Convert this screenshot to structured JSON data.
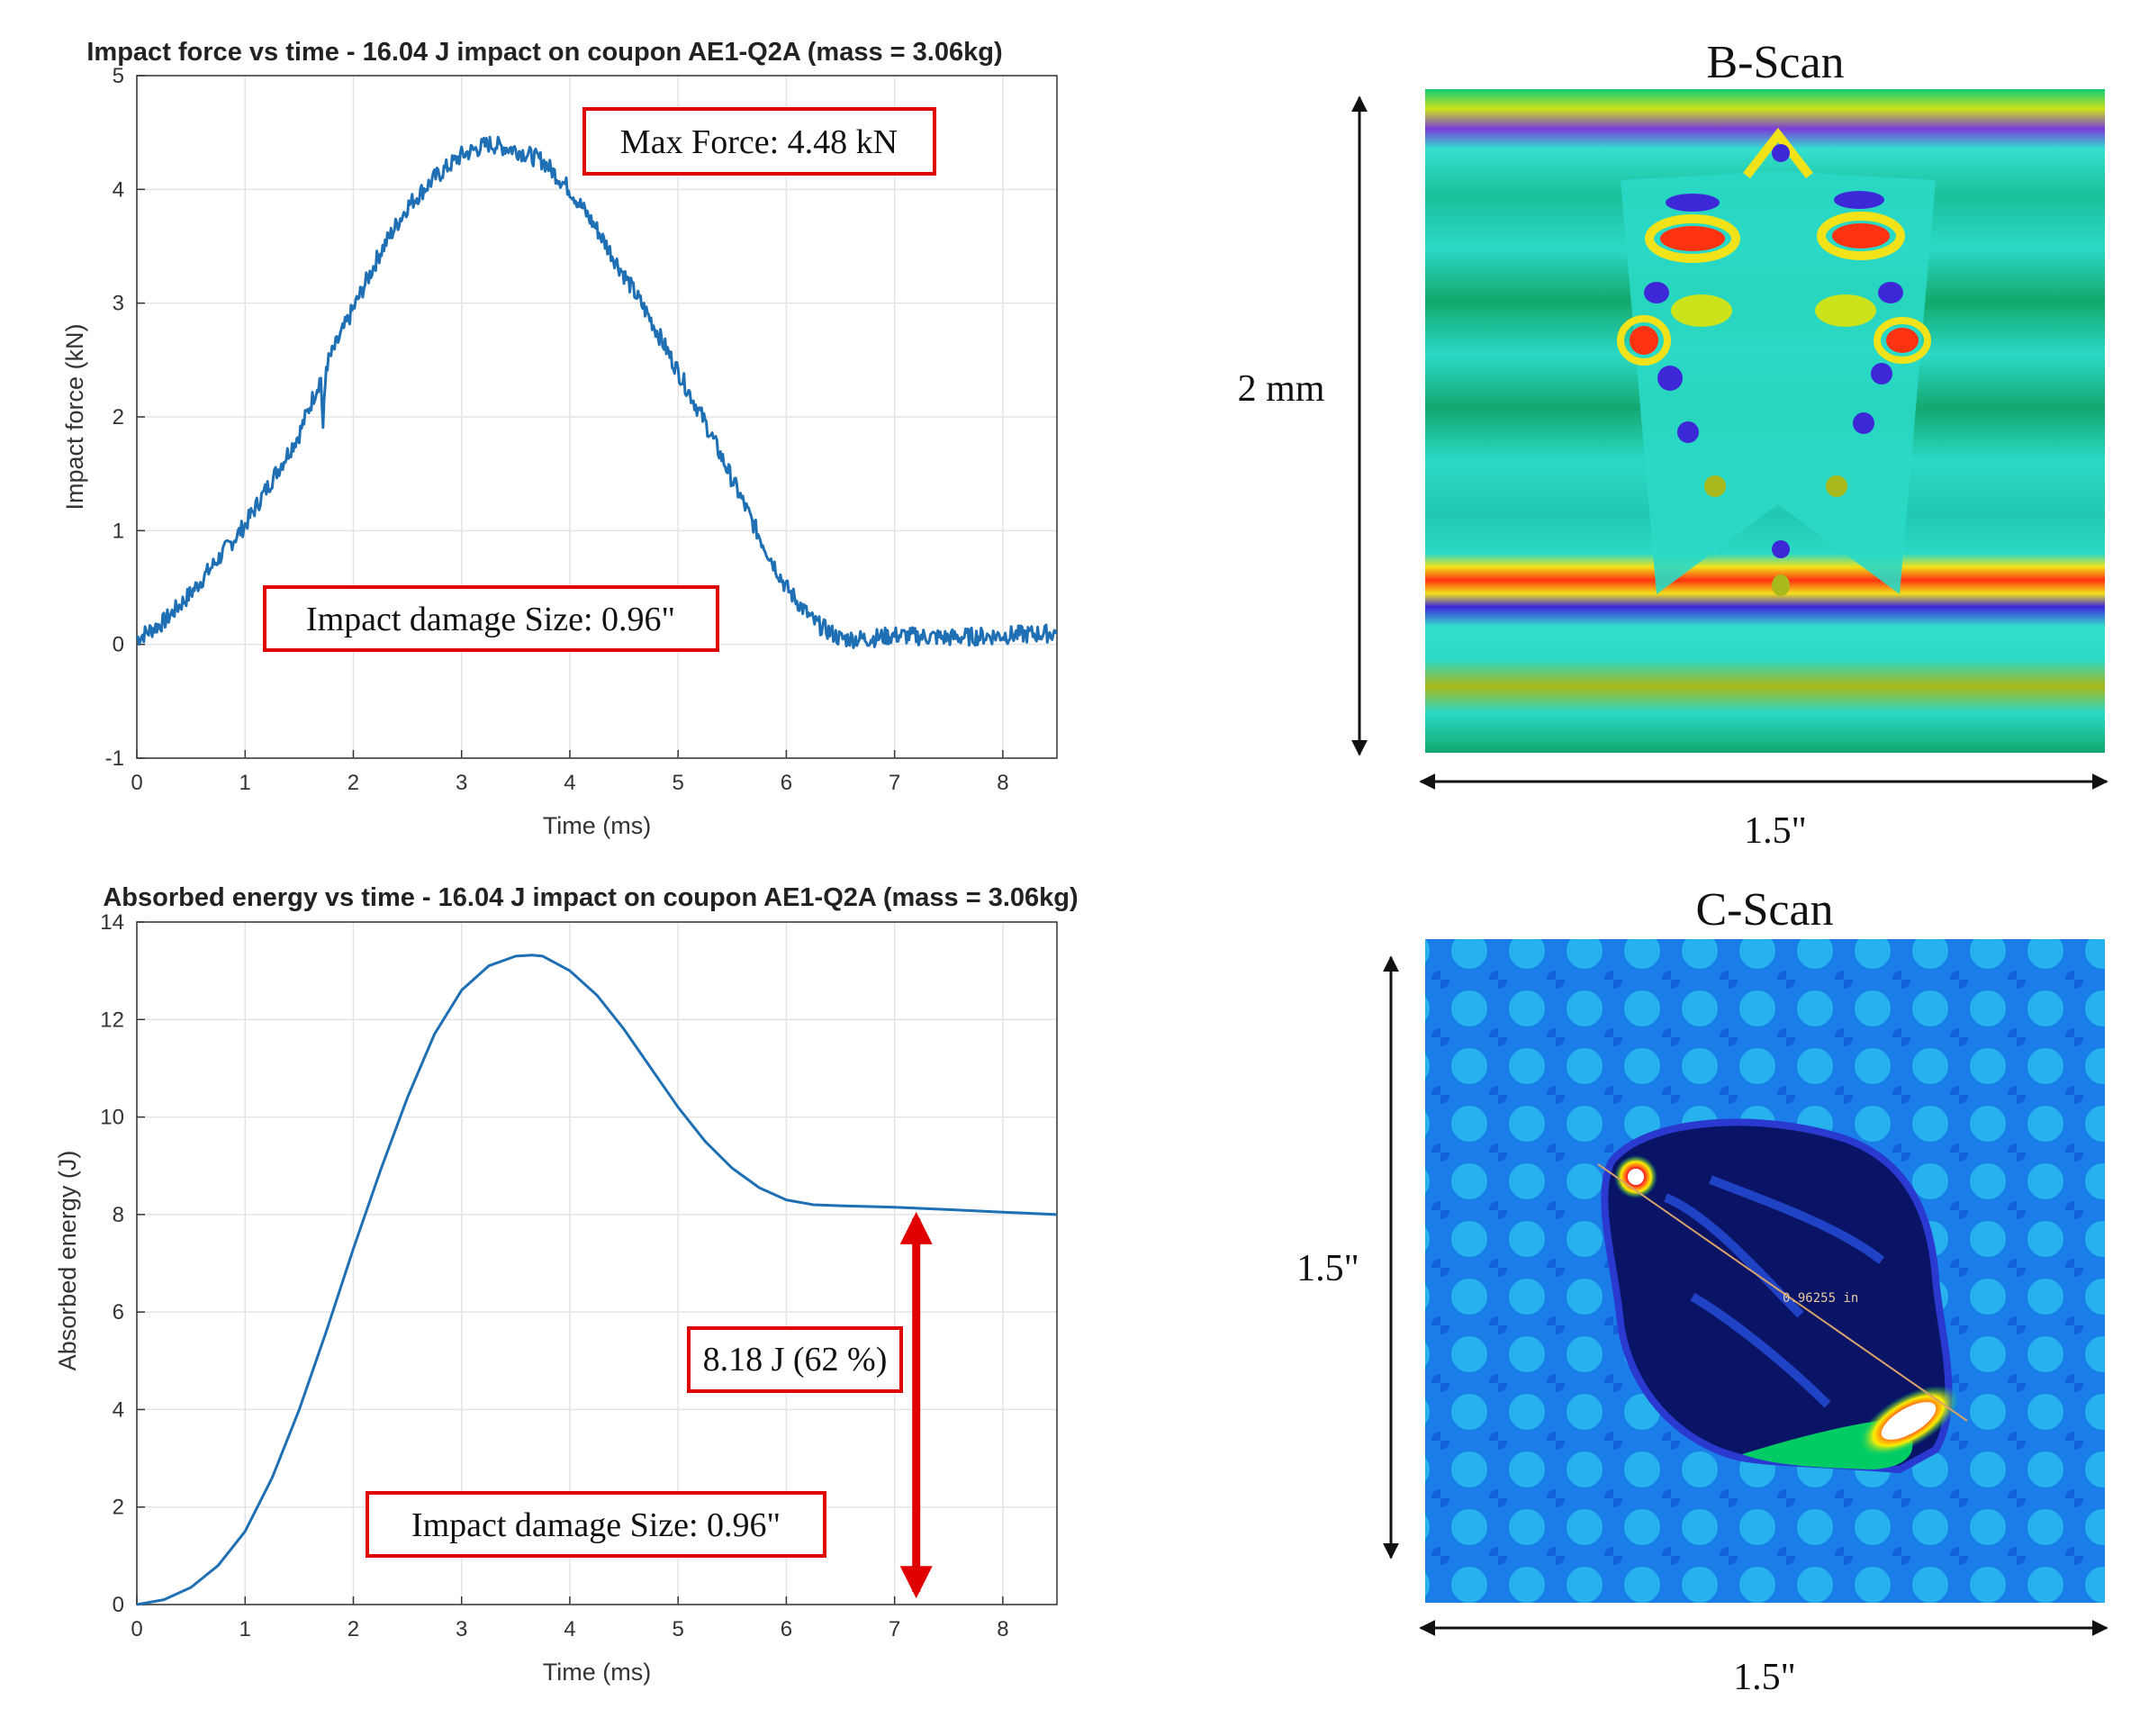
{
  "colors": {
    "series": "#1f6fb4",
    "annotation_box": "#e00000",
    "arrow": "#e00000",
    "grid": "#e4e4e4"
  },
  "chart_data": [
    {
      "type": "line",
      "title": "Impact force vs time - 16.04 J impact on coupon AE1-Q2A (mass = 3.06kg)",
      "xlabel": "Time (ms)",
      "ylabel": "Impact force (kN)",
      "xlim": [
        0,
        8.5
      ],
      "ylim": [
        -1,
        5
      ],
      "x_ticks": [
        "0",
        "1",
        "2",
        "3",
        "4",
        "5",
        "6",
        "7",
        "8"
      ],
      "y_ticks": [
        "-1",
        "0",
        "1",
        "2",
        "3",
        "4",
        "5"
      ],
      "grid": true,
      "series": [
        {
          "name": "Impact force",
          "x": [
            0,
            0.25,
            0.5,
            0.75,
            1.0,
            1.25,
            1.5,
            1.7,
            1.72,
            1.75,
            2.0,
            2.25,
            2.5,
            2.75,
            3.0,
            3.25,
            3.5,
            3.75,
            4.0,
            4.25,
            4.5,
            4.75,
            5.0,
            5.25,
            5.5,
            5.75,
            6.0,
            6.25,
            6.5,
            6.75,
            7.0,
            7.5,
            8.0,
            8.5
          ],
          "values": [
            0.05,
            0.2,
            0.45,
            0.75,
            1.05,
            1.45,
            1.85,
            2.35,
            1.9,
            2.45,
            2.95,
            3.45,
            3.85,
            4.1,
            4.3,
            4.4,
            4.35,
            4.25,
            4.0,
            3.65,
            3.25,
            2.85,
            2.4,
            1.95,
            1.45,
            0.95,
            0.5,
            0.2,
            0.05,
            0.05,
            0.08,
            0.06,
            0.08,
            0.1
          ]
        }
      ],
      "annotations": [
        {
          "text": "Max Force: 4.48 kN",
          "x": 5.5,
          "y": 4.48
        },
        {
          "text": "Impact damage Size: 0.96\"",
          "x": 3.3,
          "y": 0.2
        }
      ]
    },
    {
      "type": "line",
      "title": "Absorbed energy vs time - 16.04 J impact on coupon AE1-Q2A (mass = 3.06kg)",
      "xlabel": "Time (ms)",
      "ylabel": "Absorbed energy (J)",
      "xlim": [
        0,
        8.5
      ],
      "ylim": [
        0,
        14
      ],
      "x_ticks": [
        "0",
        "1",
        "2",
        "3",
        "4",
        "5",
        "6",
        "7",
        "8"
      ],
      "y_ticks": [
        "0",
        "2",
        "4",
        "6",
        "8",
        "10",
        "12",
        "14"
      ],
      "grid": true,
      "series": [
        {
          "name": "Absorbed energy",
          "x": [
            0,
            0.25,
            0.5,
            0.75,
            1.0,
            1.25,
            1.5,
            1.75,
            2.0,
            2.25,
            2.5,
            2.75,
            3.0,
            3.25,
            3.5,
            3.65,
            3.75,
            4.0,
            4.25,
            4.5,
            4.75,
            5.0,
            5.25,
            5.5,
            5.75,
            6.0,
            6.25,
            6.5,
            7.0,
            7.5,
            8.0,
            8.5
          ],
          "values": [
            0,
            0.1,
            0.35,
            0.8,
            1.5,
            2.6,
            4.0,
            5.6,
            7.3,
            8.9,
            10.4,
            11.7,
            12.6,
            13.1,
            13.3,
            13.32,
            13.3,
            13.0,
            12.5,
            11.8,
            11.0,
            10.2,
            9.5,
            8.95,
            8.55,
            8.3,
            8.2,
            8.18,
            8.15,
            8.1,
            8.05,
            8.0
          ]
        }
      ],
      "annotations": [
        {
          "text": "8.18 J (62 %)",
          "x": 6.1,
          "y": 5.1
        },
        {
          "text": "Impact damage Size: 0.96\"",
          "x": 4.2,
          "y": 1.7
        }
      ],
      "arrow": {
        "x": 7.2,
        "y_from": 0,
        "y_to": 8.18
      }
    }
  ],
  "scans": {
    "b_scan": {
      "title": "B-Scan",
      "height_label": "2 mm",
      "width_label": "1.5\""
    },
    "c_scan": {
      "title": "C-Scan",
      "height_label": "1.5\"",
      "width_label": "1.5\"",
      "measurement_text": "0.96255 in"
    }
  }
}
